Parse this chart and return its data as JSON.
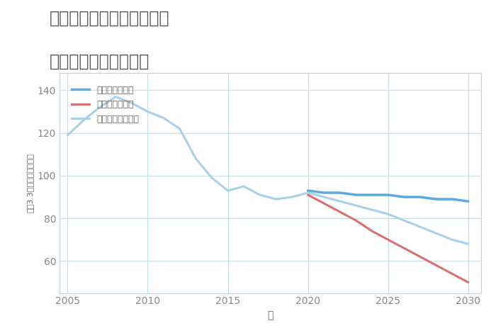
{
  "title_line1": "兵庫県豊岡市但東町畑山の",
  "title_line2": "中古戸建ての価格推移",
  "xlabel": "年",
  "ylabel": "坪（3.3㎡）単価（万円）",
  "background_color": "#ffffff",
  "plot_bg_color": "#ffffff",
  "grid_color": "#c8dce8",
  "historical": {
    "years": [
      2005,
      2006,
      2007,
      2008,
      2009,
      2010,
      2011,
      2012,
      2013,
      2014,
      2015,
      2016,
      2017,
      2018,
      2019,
      2020
    ],
    "values": [
      119,
      126,
      132,
      137,
      134,
      130,
      127,
      122,
      108,
      99,
      93,
      95,
      91,
      89,
      90,
      92
    ],
    "color": "#aad0e8",
    "linewidth": 2.2
  },
  "good": {
    "years": [
      2020,
      2021,
      2022,
      2023,
      2024,
      2025,
      2026,
      2027,
      2028,
      2029,
      2030
    ],
    "values": [
      93,
      92,
      92,
      91,
      91,
      91,
      90,
      90,
      89,
      89,
      88
    ],
    "color": "#5aabe0",
    "linewidth": 2.5,
    "label": "グッドシナリオ"
  },
  "bad": {
    "years": [
      2020,
      2021,
      2022,
      2023,
      2024,
      2025,
      2026,
      2027,
      2028,
      2029,
      2030
    ],
    "values": [
      91,
      87,
      83,
      79,
      74,
      70,
      66,
      62,
      58,
      54,
      50
    ],
    "color": "#d97070",
    "linewidth": 2.2,
    "label": "バッドシナリオ"
  },
  "normal_future": {
    "years": [
      2020,
      2021,
      2022,
      2023,
      2024,
      2025,
      2026,
      2027,
      2028,
      2029,
      2030
    ],
    "values": [
      92,
      90,
      88,
      86,
      84,
      82,
      79,
      76,
      73,
      70,
      68
    ],
    "color": "#aad0e8",
    "linewidth": 2.2,
    "label": "ノーマルシナリオ"
  },
  "ylim": [
    45,
    148
  ],
  "xlim": [
    2004.5,
    2030.8
  ],
  "yticks": [
    60,
    80,
    100,
    120,
    140
  ],
  "xticks": [
    2005,
    2010,
    2015,
    2020,
    2025,
    2030
  ],
  "legend_labels": [
    "グッドシナリオ",
    "バッドシナリオ",
    "ノーマルシナリオ"
  ],
  "legend_colors": [
    "#5aabe0",
    "#d97070",
    "#aad0e8"
  ],
  "title_color": "#555555",
  "tick_color": "#888888",
  "label_color": "#666666",
  "title_fontsize": 17,
  "legend_fontsize": 9,
  "axis_label_fontsize": 10
}
